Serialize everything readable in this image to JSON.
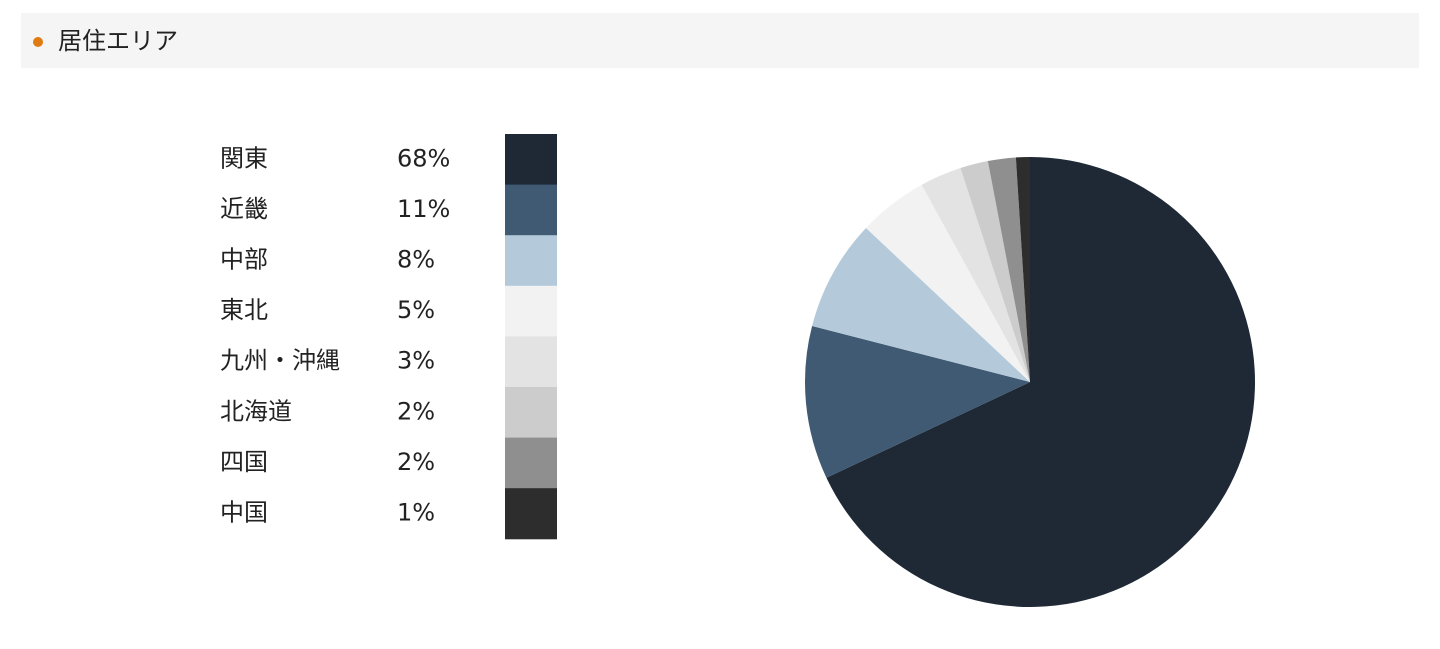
{
  "chart_data": {
    "type": "pie",
    "title": "居住エリア",
    "categories": [
      "関東",
      "近畿",
      "中部",
      "東北",
      "九州・沖縄",
      "北海道",
      "四国",
      "中国"
    ],
    "values": [
      68,
      11,
      8,
      5,
      3,
      2,
      2,
      1
    ],
    "value_labels": [
      "68%",
      "11%",
      "8%",
      "5%",
      "3%",
      "2%",
      "2%",
      "1%"
    ],
    "colors": [
      "#1e2935",
      "#3f5a72",
      "#b4cada",
      "#f2f2f2",
      "#e3e3e3",
      "#cccccc",
      "#8f8f8f",
      "#2d2d2d"
    ]
  }
}
